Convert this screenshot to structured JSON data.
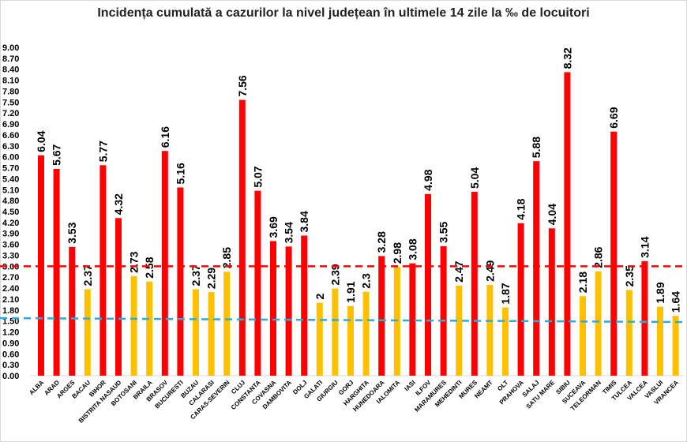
{
  "chart_data": {
    "type": "bar",
    "title": "Incidența cumulată a cazurilor la nivel județean în ultimele 14 zile la ‰ de locuitori",
    "xlabel": "",
    "ylabel": "",
    "ylim": [
      0,
      9
    ],
    "ytick_step": 0.3,
    "grid": false,
    "legend": "none",
    "categories": [
      "ALBA",
      "ARAD",
      "ARGES",
      "BACAU",
      "BIHOR",
      "BISTRITA NASAUD",
      "BOTOSANI",
      "BRAILA",
      "BRASOV",
      "BUCURESTI",
      "BUZAU",
      "CALARASI",
      "CARAS-SEVERIN",
      "CLUJ",
      "CONSTANTA",
      "COVASNA",
      "DAMBOVITA",
      "DOLJ",
      "GALATI",
      "GIURGIU",
      "GORJ",
      "HARGHITA",
      "HUNEDOARA",
      "IALOMITA",
      "IASI",
      "ILFOV",
      "MARAMURES",
      "MEHEDINTI",
      "MURES",
      "NEAMT",
      "OLT",
      "PRAHOVA",
      "SALAJ",
      "SATU MARE",
      "SIBIU",
      "SUCEAVA",
      "TELEORMAN",
      "TIMIS",
      "TULCEA",
      "VALCEA",
      "VASLUI",
      "VRANCEA"
    ],
    "values": [
      6.04,
      5.67,
      3.53,
      2.37,
      5.77,
      4.32,
      2.73,
      2.58,
      6.16,
      5.16,
      2.37,
      2.29,
      2.85,
      7.56,
      5.07,
      3.69,
      3.54,
      3.84,
      2,
      2.39,
      1.91,
      2.3,
      3.28,
      2.98,
      3.08,
      4.98,
      3.55,
      2.47,
      5.04,
      2.49,
      1.87,
      4.18,
      5.88,
      4.04,
      8.32,
      2.18,
      2.86,
      6.69,
      2.35,
      3.14,
      1.89,
      1.64
    ],
    "colors": {
      "above_threshold": "#ff0000",
      "below_threshold": "#ffc000"
    },
    "reference_lines": [
      {
        "value": 3.0,
        "color": "#ff0000",
        "style": "dashed"
      },
      {
        "value_start": 1.58,
        "value_end": 1.47,
        "color": "#2eaadc",
        "style": "dashed"
      }
    ]
  }
}
